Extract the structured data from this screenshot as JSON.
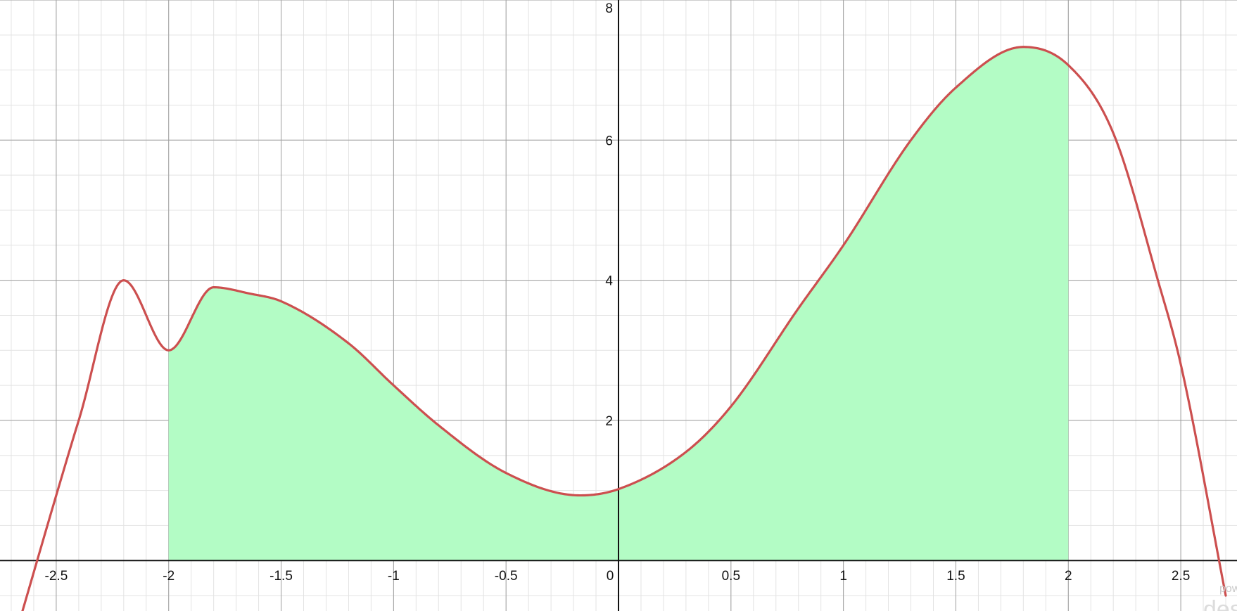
{
  "chart_data": {
    "type": "area",
    "title": "",
    "xlabel": "",
    "ylabel": "",
    "xlim": [
      -2.75,
      2.75
    ],
    "ylim": [
      -0.72,
      8.0
    ],
    "grid": true,
    "major_x_ticks": [
      -2.5,
      -2,
      -1.5,
      -1,
      -0.5,
      0,
      0.5,
      1,
      1.5,
      2,
      2.5
    ],
    "x_tick_labels": [
      "-2.5",
      "-2",
      "-1.5",
      "-1",
      "-0.5",
      "0",
      "0.5",
      "1",
      "1.5",
      "2",
      "2.5"
    ],
    "major_y_ticks": [
      2,
      4,
      6,
      8
    ],
    "y_tick_labels": [
      "2",
      "4",
      "6",
      "8"
    ],
    "minor_x_step": 0.1,
    "minor_y_step": 0.5,
    "series": [
      {
        "x": [
          -2.65,
          -2.5,
          -2.4,
          -2.2,
          -2.0,
          -1.8,
          -1.64,
          -1.5,
          -1.2,
          -1.0,
          -0.8,
          -0.5,
          -0.17,
          0.0,
          0.3,
          0.5,
          0.8,
          1.0,
          1.3,
          1.5,
          1.8,
          2.0,
          2.2,
          2.4,
          2.5,
          2.7
        ],
        "y": [
          -0.72,
          0.93,
          2.0,
          4.0,
          3.0,
          3.9,
          3.81,
          3.7,
          3.1,
          2.5,
          1.93,
          1.25,
          0.93,
          1.02,
          1.55,
          2.2,
          3.6,
          4.5,
          6.0,
          6.75,
          7.33,
          7.07,
          6.1,
          3.98,
          2.8,
          -0.5
        ]
      }
    ],
    "shaded_region": {
      "x_from": -2,
      "x_to": 2,
      "y_base": 0,
      "fill": "#b3fcc5"
    },
    "curve_color": "#cc4f4f",
    "watermark_text": "pow",
    "watermark_text_2": "des"
  }
}
